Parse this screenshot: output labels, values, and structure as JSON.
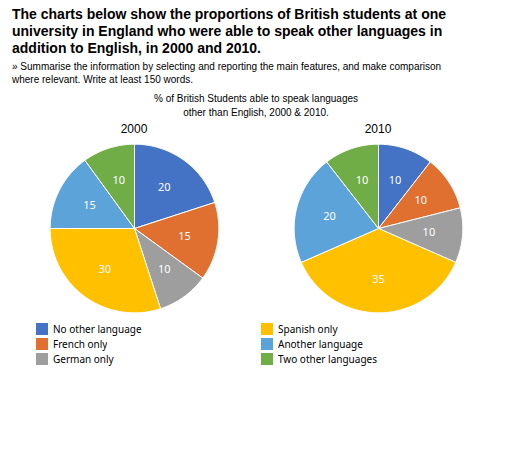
{
  "title": "The charts below show the proportions of British students at one university in England who were able to speak other languages in addition to English, in 2000 and 2010.",
  "subtitle": "» Summarise the information by selecting and reporting the main features, and make comparison\nwhere relevant. Write at least 150 words.",
  "chart_title": "% of British Students able to speak languages\nother than English, 2000 & 2010.",
  "legend": "bottom",
  "chart_data": [
    {
      "type": "pie",
      "title": "2000",
      "categories": [
        "No other language",
        "French only",
        "German only",
        "Spanish only",
        "Another language",
        "Two other languages"
      ],
      "values": [
        20,
        15,
        10,
        30,
        15,
        10
      ],
      "colors": [
        "#4472C4",
        "#E07030",
        "#9E9E9E",
        "#FFC000",
        "#5BA3D9",
        "#70AD47"
      ],
      "data_labels": true
    },
    {
      "type": "pie",
      "title": "2010",
      "categories": [
        "No other language",
        "French only",
        "German only",
        "Spanish only",
        "Another language",
        "Two other languages"
      ],
      "values": [
        10,
        10,
        10,
        35,
        20,
        10
      ],
      "colors": [
        "#4472C4",
        "#E07030",
        "#9E9E9E",
        "#FFC000",
        "#5BA3D9",
        "#70AD47"
      ],
      "data_labels": true
    }
  ]
}
